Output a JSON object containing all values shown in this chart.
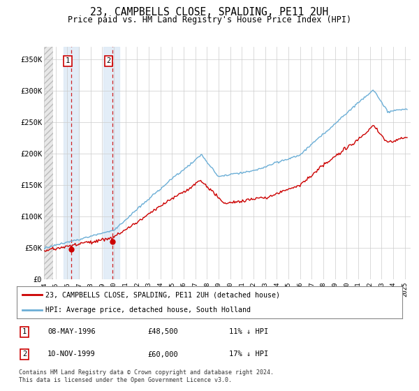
{
  "title": "23, CAMPBELLS CLOSE, SPALDING, PE11 2UH",
  "subtitle": "Price paid vs. HM Land Registry's House Price Index (HPI)",
  "xlim_start": 1994.0,
  "xlim_end": 2025.5,
  "ylim": [
    0,
    370000
  ],
  "yticks": [
    0,
    50000,
    100000,
    150000,
    200000,
    250000,
    300000,
    350000
  ],
  "ytick_labels": [
    "£0",
    "£50K",
    "£100K",
    "£150K",
    "£200K",
    "£250K",
    "£300K",
    "£350K"
  ],
  "xtick_years": [
    1994,
    1995,
    1996,
    1997,
    1998,
    1999,
    2000,
    2001,
    2002,
    2003,
    2004,
    2005,
    2006,
    2007,
    2008,
    2009,
    2010,
    2011,
    2012,
    2013,
    2014,
    2015,
    2016,
    2017,
    2018,
    2019,
    2020,
    2021,
    2022,
    2023,
    2024,
    2025
  ],
  "sale1_x": 1996.35,
  "sale1_y": 48500,
  "sale2_x": 1999.86,
  "sale2_y": 60000,
  "hpi_color": "#6baed6",
  "price_color": "#cc0000",
  "shade_color": "#dce9f5",
  "bg_color": "#ffffff",
  "grid_color": "#cccccc",
  "legend_label_price": "23, CAMPBELLS CLOSE, SPALDING, PE11 2UH (detached house)",
  "legend_label_hpi": "HPI: Average price, detached house, South Holland",
  "table_row1": [
    "1",
    "08-MAY-1996",
    "£48,500",
    "11% ↓ HPI"
  ],
  "table_row2": [
    "2",
    "10-NOV-1999",
    "£60,000",
    "17% ↓ HPI"
  ],
  "footer": "Contains HM Land Registry data © Crown copyright and database right 2024.\nThis data is licensed under the Open Government Licence v3.0."
}
